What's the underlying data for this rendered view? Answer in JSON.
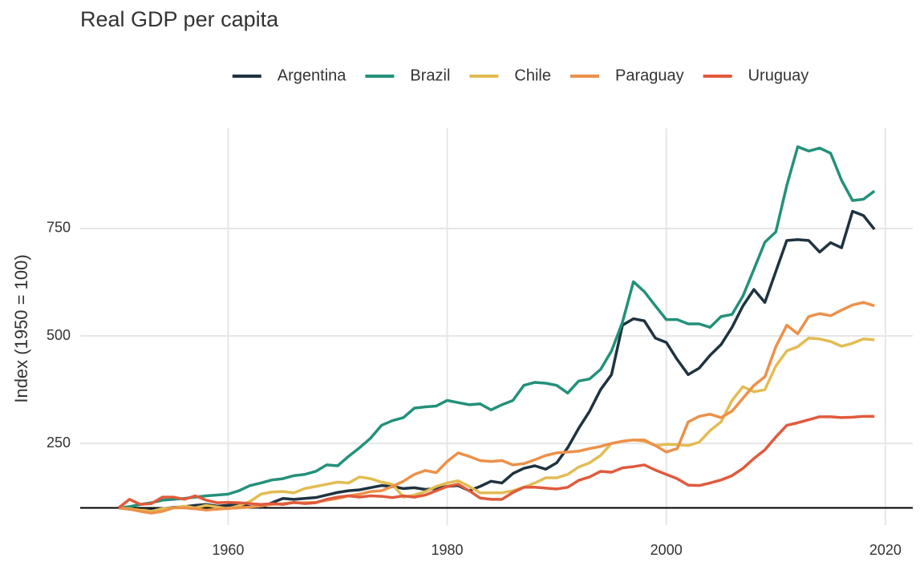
{
  "chart_data": {
    "type": "line",
    "title": "Real GDP per capita",
    "y_label": "Index (1950 = 100)",
    "x": [
      1950,
      1951,
      1952,
      1953,
      1954,
      1955,
      1956,
      1957,
      1958,
      1959,
      1960,
      1961,
      1962,
      1963,
      1964,
      1965,
      1966,
      1967,
      1968,
      1969,
      1970,
      1971,
      1972,
      1973,
      1974,
      1975,
      1976,
      1977,
      1978,
      1979,
      1980,
      1981,
      1982,
      1983,
      1984,
      1985,
      1986,
      1987,
      1988,
      1989,
      1990,
      1991,
      1992,
      1993,
      1994,
      1995,
      1996,
      1997,
      1998,
      1999,
      2000,
      2001,
      2002,
      2003,
      2004,
      2005,
      2006,
      2007,
      2008,
      2009,
      2010,
      2011,
      2012,
      2013,
      2014,
      2015,
      2016,
      2017,
      2018,
      2019
    ],
    "series": [
      {
        "name": "Argentina",
        "color": "#1f3340",
        "values": [
          100,
          97,
          94,
          95,
          98,
          101,
          103,
          106,
          108,
          104,
          106,
          108,
          103,
          101,
          112,
          122,
          120,
          122,
          124,
          130,
          136,
          140,
          142,
          147,
          152,
          150,
          145,
          147,
          143,
          145,
          150,
          152,
          140,
          150,
          162,
          158,
          180,
          192,
          198,
          190,
          205,
          240,
          285,
          325,
          375,
          410,
          525,
          540,
          535,
          495,
          485,
          445,
          410,
          425,
          455,
          480,
          520,
          570,
          608,
          578,
          650,
          722,
          724,
          722,
          695,
          717,
          705,
          790,
          780,
          748
        ]
      },
      {
        "name": "Brazil",
        "color": "#23917a",
        "values": [
          100,
          103,
          108,
          112,
          118,
          120,
          122,
          125,
          128,
          130,
          132,
          140,
          152,
          158,
          165,
          168,
          175,
          178,
          185,
          200,
          198,
          220,
          240,
          262,
          292,
          303,
          310,
          332,
          335,
          337,
          350,
          345,
          340,
          342,
          328,
          340,
          350,
          385,
          392,
          390,
          385,
          367,
          395,
          400,
          422,
          465,
          532,
          626,
          603,
          570,
          538,
          538,
          528,
          528,
          520,
          545,
          550,
          593,
          655,
          718,
          742,
          850,
          940,
          930,
          937,
          925,
          862,
          815,
          818,
          837
        ]
      },
      {
        "name": "Chile",
        "color": "#e3bc52",
        "values": [
          100,
          98,
          95,
          92,
          98,
          100,
          104,
          100,
          106,
          102,
          98,
          105,
          115,
          132,
          137,
          138,
          135,
          145,
          150,
          155,
          160,
          158,
          172,
          168,
          160,
          155,
          125,
          130,
          138,
          150,
          158,
          163,
          150,
          135,
          135,
          135,
          140,
          148,
          158,
          170,
          170,
          178,
          195,
          205,
          222,
          250,
          255,
          258,
          255,
          245,
          248,
          247,
          245,
          253,
          280,
          300,
          350,
          382,
          370,
          375,
          430,
          465,
          475,
          495,
          493,
          487,
          476,
          483,
          493,
          491
        ]
      },
      {
        "name": "Paraguay",
        "color": "#ec914a",
        "values": [
          100,
          97,
          92,
          88,
          92,
          100,
          100,
          98,
          95,
          97,
          99,
          100,
          102,
          105,
          108,
          110,
          112,
          112,
          113,
          118,
          122,
          128,
          132,
          138,
          140,
          150,
          162,
          178,
          187,
          182,
          208,
          228,
          220,
          210,
          208,
          210,
          200,
          203,
          212,
          222,
          228,
          230,
          232,
          238,
          243,
          250,
          255,
          258,
          258,
          245,
          230,
          238,
          300,
          313,
          318,
          310,
          325,
          355,
          385,
          405,
          475,
          525,
          505,
          545,
          552,
          547,
          560,
          572,
          578,
          570
        ]
      },
      {
        "name": "Uruguay",
        "color": "#e05a3c",
        "values": [
          100,
          120,
          108,
          110,
          125,
          125,
          120,
          128,
          118,
          112,
          113,
          112,
          110,
          108,
          110,
          108,
          113,
          110,
          112,
          120,
          125,
          128,
          125,
          128,
          127,
          124,
          128,
          125,
          130,
          140,
          150,
          155,
          140,
          123,
          120,
          120,
          136,
          148,
          148,
          146,
          144,
          148,
          164,
          172,
          185,
          183,
          193,
          196,
          200,
          188,
          178,
          168,
          153,
          152,
          158,
          165,
          175,
          192,
          215,
          235,
          265,
          292,
          298,
          305,
          312,
          312,
          310,
          311,
          313,
          313
        ]
      }
    ],
    "xlim": [
      1946.5,
      2022.5
    ],
    "xticks": [
      1960,
      1980,
      2000,
      2020
    ],
    "ylim": [
      60,
      983
    ],
    "yticks": [
      250,
      500,
      750
    ],
    "hline": 100,
    "grid": true,
    "legend": "top"
  }
}
